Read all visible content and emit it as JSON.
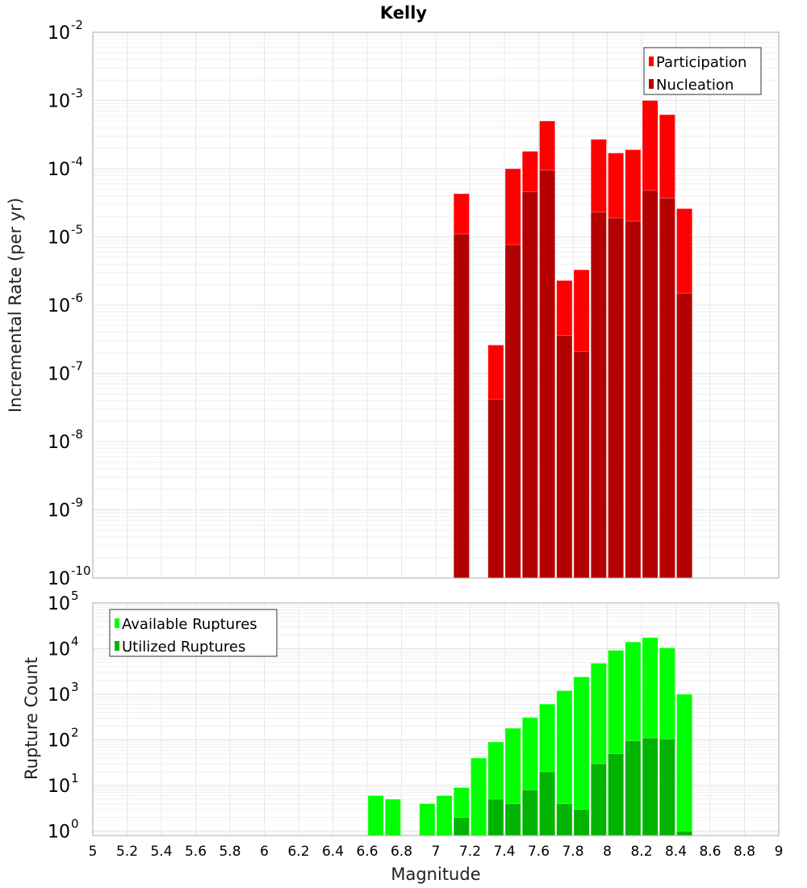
{
  "chart_data": [
    {
      "type": "bar",
      "title": "Kelly",
      "xlabel": "",
      "ylabel": "Incremental Rate (per yr)",
      "yscale": "log",
      "ylim": [
        1e-10,
        0.01
      ],
      "xlim": [
        5,
        9
      ],
      "grid": true,
      "legend_position": "top-right",
      "bin_width": 0.1,
      "x": [
        7.15,
        7.35,
        7.45,
        7.55,
        7.65,
        7.75,
        7.85,
        7.95,
        8.05,
        8.15,
        8.25,
        8.35,
        8.45
      ],
      "series": [
        {
          "name": "Participation",
          "color": "#ff0000",
          "values": [
            4.3e-05,
            2.6e-07,
            0.0001,
            0.00018,
            0.0005,
            2.3e-06,
            3.3e-06,
            0.00027,
            0.00017,
            0.00019,
            0.001,
            0.00062,
            2.6e-05
          ]
        },
        {
          "name": "Nucleation",
          "color": "#b30000",
          "values": [
            1.1e-05,
            4.2e-08,
            7.7e-06,
            4.6e-05,
            9.5e-05,
            3.6e-07,
            2.1e-07,
            2.3e-05,
            1.9e-05,
            1.7e-05,
            4.8e-05,
            3.7e-05,
            1.5e-06
          ]
        }
      ],
      "ytick_exponents": [
        "-10",
        "-9",
        "-8",
        "-7",
        "-6",
        "-5",
        "-4",
        "-3",
        "-2"
      ]
    },
    {
      "type": "bar",
      "xlabel": "Magnitude",
      "ylabel": "Rupture Count",
      "yscale": "log",
      "ylim": [
        0.8,
        100000.0
      ],
      "xlim": [
        5,
        9
      ],
      "grid": true,
      "legend_position": "top-left",
      "bin_width": 0.1,
      "x": [
        6.65,
        6.75,
        6.95,
        7.05,
        7.15,
        7.25,
        7.35,
        7.45,
        7.55,
        7.65,
        7.75,
        7.85,
        7.95,
        8.05,
        8.15,
        8.25,
        8.35,
        8.45
      ],
      "series": [
        {
          "name": "Available Ruptures",
          "color": "#00ff00",
          "values": [
            6,
            5,
            4,
            6,
            9,
            40,
            90,
            180,
            310,
            610,
            1200,
            2400,
            4800,
            9200,
            14000,
            17500,
            10400,
            1000
          ]
        },
        {
          "name": "Utilized Ruptures",
          "color": "#00b300",
          "values": [
            0,
            0,
            0,
            0,
            2,
            0,
            5,
            4,
            8,
            20,
            4,
            3,
            30,
            50,
            95,
            110,
            105,
            1
          ]
        }
      ],
      "ytick_exponents": [
        "0",
        "1",
        "2",
        "3",
        "4",
        "5"
      ],
      "xticks": [
        "5",
        "5.2",
        "5.4",
        "5.6",
        "5.8",
        "6",
        "6.2",
        "6.4",
        "6.6",
        "6.8",
        "7",
        "7.2",
        "7.4",
        "7.6",
        "7.8",
        "8",
        "8.2",
        "8.4",
        "8.6",
        "8.8",
        "9"
      ]
    }
  ]
}
